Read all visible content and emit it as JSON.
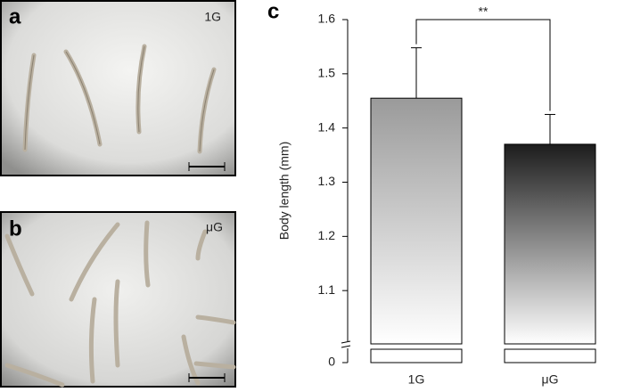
{
  "panels": [
    {
      "label": "a",
      "condition": "1G"
    },
    {
      "label": "b",
      "condition": "μG"
    }
  ],
  "chart_data": {
    "type": "bar",
    "panel_label": "c",
    "ylabel": "Body length (mm)",
    "categories": [
      "1G",
      "μG"
    ],
    "values": [
      1.455,
      1.37
    ],
    "errors": [
      0.093,
      0.055
    ],
    "colors": [
      "#9a9a9a",
      "#1c1c1c"
    ],
    "ylim": [
      0,
      1.6
    ],
    "axis_break": [
      0,
      1.0
    ],
    "yticks": [
      0,
      1.1,
      1.2,
      1.3,
      1.4,
      1.5,
      1.6
    ],
    "annotation": "**"
  }
}
